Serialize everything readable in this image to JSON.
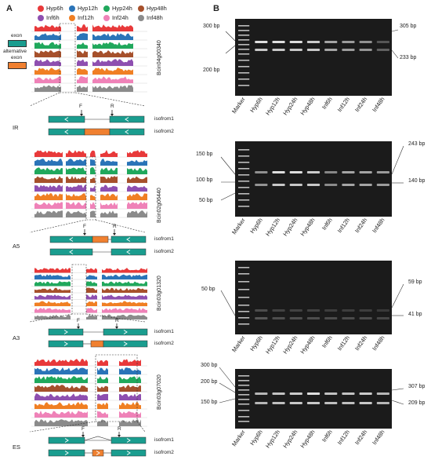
{
  "panels": {
    "a": "A",
    "b": "B"
  },
  "legend": [
    {
      "label": "Hyp6h",
      "color": "#e8393a"
    },
    {
      "label": "Hyp12h",
      "color": "#2a74b8"
    },
    {
      "label": "Hyp24h",
      "color": "#20a85c"
    },
    {
      "label": "Hyp48h",
      "color": "#a6502b"
    },
    {
      "label": "Inf6h",
      "color": "#8e4fb0"
    },
    {
      "label": "Inf12h",
      "color": "#f07f23"
    },
    {
      "label": "Inf24h",
      "color": "#ef82b8"
    },
    {
      "label": "Inf48h",
      "color": "#8b8b8b"
    }
  ],
  "key": {
    "exon": "exon",
    "alt_line1": "alternative",
    "alt_line2": "exon",
    "exon_color": "#1a9d8f",
    "alt_color": "#f08030"
  },
  "events": [
    {
      "type": "IR",
      "gene": "Bcin04g00340",
      "iso1": "isofrom1",
      "iso2": "isofrom2",
      "f": "F",
      "r": "R"
    },
    {
      "type": "A5",
      "gene": "Bcin02g06440",
      "iso1": "isofrom1",
      "iso2": "isofrom2",
      "f": "F",
      "r": "R"
    },
    {
      "type": "A3",
      "gene": "Bcin03g01320",
      "iso1": "isofrom1",
      "iso2": "isofrom2",
      "f": "F",
      "r": "R"
    },
    {
      "type": "ES",
      "gene": "Bcin03g07020",
      "iso1": "isofrom1",
      "iso2": "isofrom2",
      "f": "F",
      "r": "R"
    }
  ],
  "gel_lanes": [
    "Marker",
    "Hyp6h",
    "Hyp12h",
    "Hyp24h",
    "Hyp48h",
    "Inf6h",
    "Inf12h",
    "Inf24h",
    "Inf48h"
  ],
  "gels": [
    {
      "ladder": [
        "300 bp",
        "200 bp"
      ],
      "bands": [
        "305 bp",
        "233 bp"
      ]
    },
    {
      "ladder": [
        "150 bp",
        "100 bp",
        "50 bp"
      ],
      "bands": [
        "243 bp",
        "140 bp"
      ]
    },
    {
      "ladder": [
        "50 bp"
      ],
      "bands": [
        "59 bp",
        "41 bp"
      ]
    },
    {
      "ladder": [
        "300 bp",
        "200 bp",
        "150 bp"
      ],
      "bands": [
        "307 bp",
        "209 bp"
      ]
    }
  ]
}
